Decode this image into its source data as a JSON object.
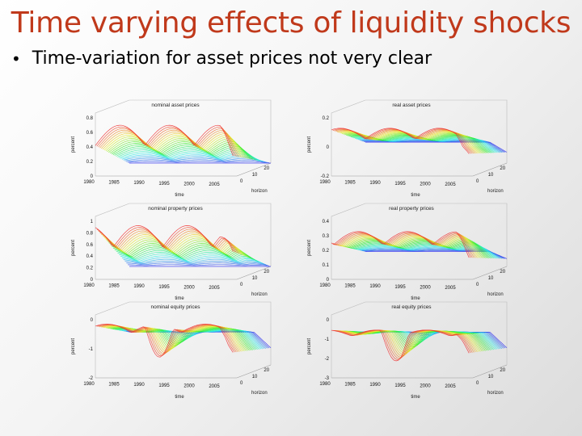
{
  "slide": {
    "title": "Time varying effects of liquidity shocks",
    "bullet": "Time-variation for asset prices not very clear",
    "bullet_marker": "•"
  },
  "chart_data": [
    {
      "type": "surface",
      "title": "nominal asset prices",
      "xlabel": "time",
      "ylabel": "horizon",
      "zlabel": "percent",
      "x_ticks": [
        "1980",
        "1985",
        "1990",
        "1995",
        "2000",
        "2005"
      ],
      "y_ticks": [
        "0",
        "10",
        "20"
      ],
      "z_ticks": [
        "0",
        "0.2",
        "0.4",
        "0.6",
        "0.8"
      ]
    },
    {
      "type": "surface",
      "title": "real asset prices",
      "xlabel": "time",
      "ylabel": "horizon",
      "zlabel": "percent",
      "x_ticks": [
        "1980",
        "1985",
        "1990",
        "1995",
        "2000",
        "2005"
      ],
      "y_ticks": [
        "0",
        "10",
        "20"
      ],
      "z_ticks": [
        "-0.2",
        "0",
        "0.2"
      ]
    },
    {
      "type": "surface",
      "title": "nominal property prices",
      "xlabel": "time",
      "ylabel": "horizon",
      "zlabel": "percent",
      "x_ticks": [
        "1980",
        "1985",
        "1990",
        "1995",
        "2000",
        "2005"
      ],
      "y_ticks": [
        "0",
        "10",
        "20"
      ],
      "z_ticks": [
        "0",
        "0.2",
        "0.4",
        "0.6",
        "0.8",
        "1"
      ]
    },
    {
      "type": "surface",
      "title": "real property prices",
      "xlabel": "time",
      "ylabel": "horizon",
      "zlabel": "percent",
      "x_ticks": [
        "1980",
        "1985",
        "1990",
        "1995",
        "2000",
        "2005"
      ],
      "y_ticks": [
        "0",
        "10",
        "20"
      ],
      "z_ticks": [
        "0",
        "0.1",
        "0.2",
        "0.3",
        "0.4"
      ]
    },
    {
      "type": "surface",
      "title": "nominal equity prices",
      "xlabel": "time",
      "ylabel": "horizon",
      "zlabel": "percent",
      "x_ticks": [
        "1980",
        "1985",
        "1990",
        "1995",
        "2000",
        "2005"
      ],
      "y_ticks": [
        "0",
        "10",
        "20"
      ],
      "z_ticks": [
        "-2",
        "-1",
        "0"
      ]
    },
    {
      "type": "surface",
      "title": "real equity prices",
      "xlabel": "time",
      "ylabel": "horizon",
      "zlabel": "percent",
      "x_ticks": [
        "1980",
        "1985",
        "1990",
        "1995",
        "2000",
        "2005"
      ],
      "y_ticks": [
        "0",
        "10",
        "20"
      ],
      "z_ticks": [
        "-3",
        "-2",
        "-1",
        "0"
      ]
    }
  ]
}
